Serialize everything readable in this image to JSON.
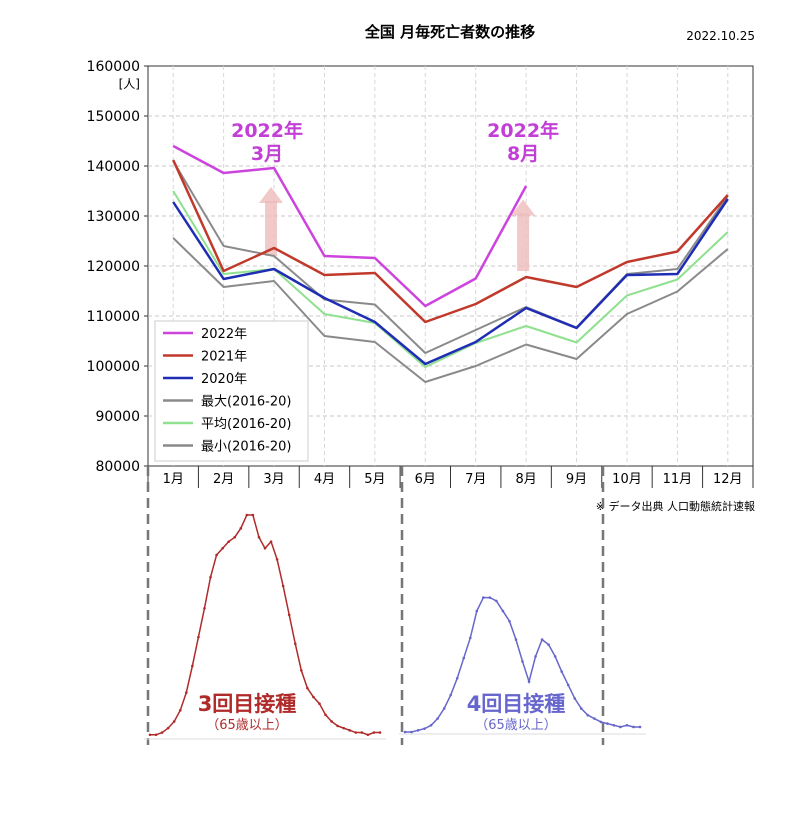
{
  "header": {
    "title": "全国 月毎死亡者数の推移",
    "date": "2022.10.25"
  },
  "chart_data": {
    "type": "line",
    "title": "全国 月毎死亡者数の推移",
    "ylabel": "[人]",
    "ylim": [
      80000,
      160000
    ],
    "yticks": [
      "160000",
      "150000",
      "140000",
      "130000",
      "120000",
      "110000",
      "100000",
      "90000",
      "80000"
    ],
    "categories": [
      "1月",
      "2月",
      "3月",
      "4月",
      "5月",
      "6月",
      "7月",
      "8月",
      "9月",
      "10月",
      "11月",
      "12月"
    ],
    "grid": true,
    "legend_position": "bottom-left",
    "series": [
      {
        "name": "2022年",
        "color": "#cc44dd",
        "width": 2.5,
        "values": [
          144000,
          138600,
          139600,
          122000,
          121600,
          112000,
          117500,
          136000,
          null,
          null,
          null,
          null
        ]
      },
      {
        "name": "2021年",
        "color": "#c0392b",
        "width": 2.5,
        "values": [
          141200,
          119000,
          123600,
          118200,
          118600,
          108800,
          112400,
          117800,
          115800,
          120800,
          122900,
          134200
        ]
      },
      {
        "name": "2020年",
        "color": "#1f2db5",
        "width": 2.5,
        "values": [
          132800,
          117400,
          119400,
          113600,
          108800,
          100400,
          104800,
          111600,
          107600,
          118200,
          118400,
          133400
        ]
      },
      {
        "name": "最大(2016-20)",
        "color": "#8a8a8a",
        "width": 2,
        "values": [
          141000,
          124000,
          122000,
          113300,
          112300,
          102600,
          107200,
          111800,
          107700,
          118400,
          119400,
          134000
        ]
      },
      {
        "name": "平均(2016-20)",
        "color": "#8fe08f",
        "width": 2,
        "values": [
          135000,
          118400,
          119400,
          110400,
          108600,
          99800,
          104600,
          108000,
          104700,
          114100,
          117300,
          126800
        ]
      },
      {
        "name": "最小(2016-20)",
        "color": "#8a8a8a",
        "width": 2,
        "values": [
          125600,
          115800,
          117000,
          106000,
          104800,
          96800,
          100000,
          104300,
          101400,
          110400,
          114900,
          123400
        ]
      }
    ],
    "annotations": [
      {
        "text": "2022年",
        "text2": "3月",
        "month_index": 2
      },
      {
        "text": "2022年",
        "text2": "8月",
        "month_index": 7
      }
    ]
  },
  "source_note": "※ データ出典 人口動態統計速報",
  "inset_left": {
    "label": "3回目接種",
    "sublabel": "（65歳以上）",
    "color": "#b02a2a",
    "values": [
      0.01,
      0.01,
      0.02,
      0.04,
      0.07,
      0.12,
      0.2,
      0.32,
      0.45,
      0.58,
      0.72,
      0.82,
      0.85,
      0.88,
      0.9,
      0.94,
      1.0,
      1.0,
      0.9,
      0.85,
      0.88,
      0.8,
      0.68,
      0.55,
      0.42,
      0.3,
      0.22,
      0.18,
      0.15,
      0.1,
      0.07,
      0.05,
      0.04,
      0.03,
      0.02,
      0.02,
      0.01,
      0.02,
      0.02
    ]
  },
  "inset_right": {
    "label": "4回目接種",
    "sublabel": "（65歳以上）",
    "color": "#6666cc",
    "values": [
      0.0,
      0.0,
      0.01,
      0.02,
      0.04,
      0.08,
      0.14,
      0.22,
      0.32,
      0.44,
      0.56,
      0.72,
      0.8,
      0.8,
      0.78,
      0.72,
      0.66,
      0.55,
      0.42,
      0.3,
      0.45,
      0.55,
      0.52,
      0.45,
      0.36,
      0.28,
      0.2,
      0.14,
      0.1,
      0.08,
      0.06,
      0.05,
      0.04,
      0.03,
      0.04,
      0.03,
      0.03
    ]
  }
}
